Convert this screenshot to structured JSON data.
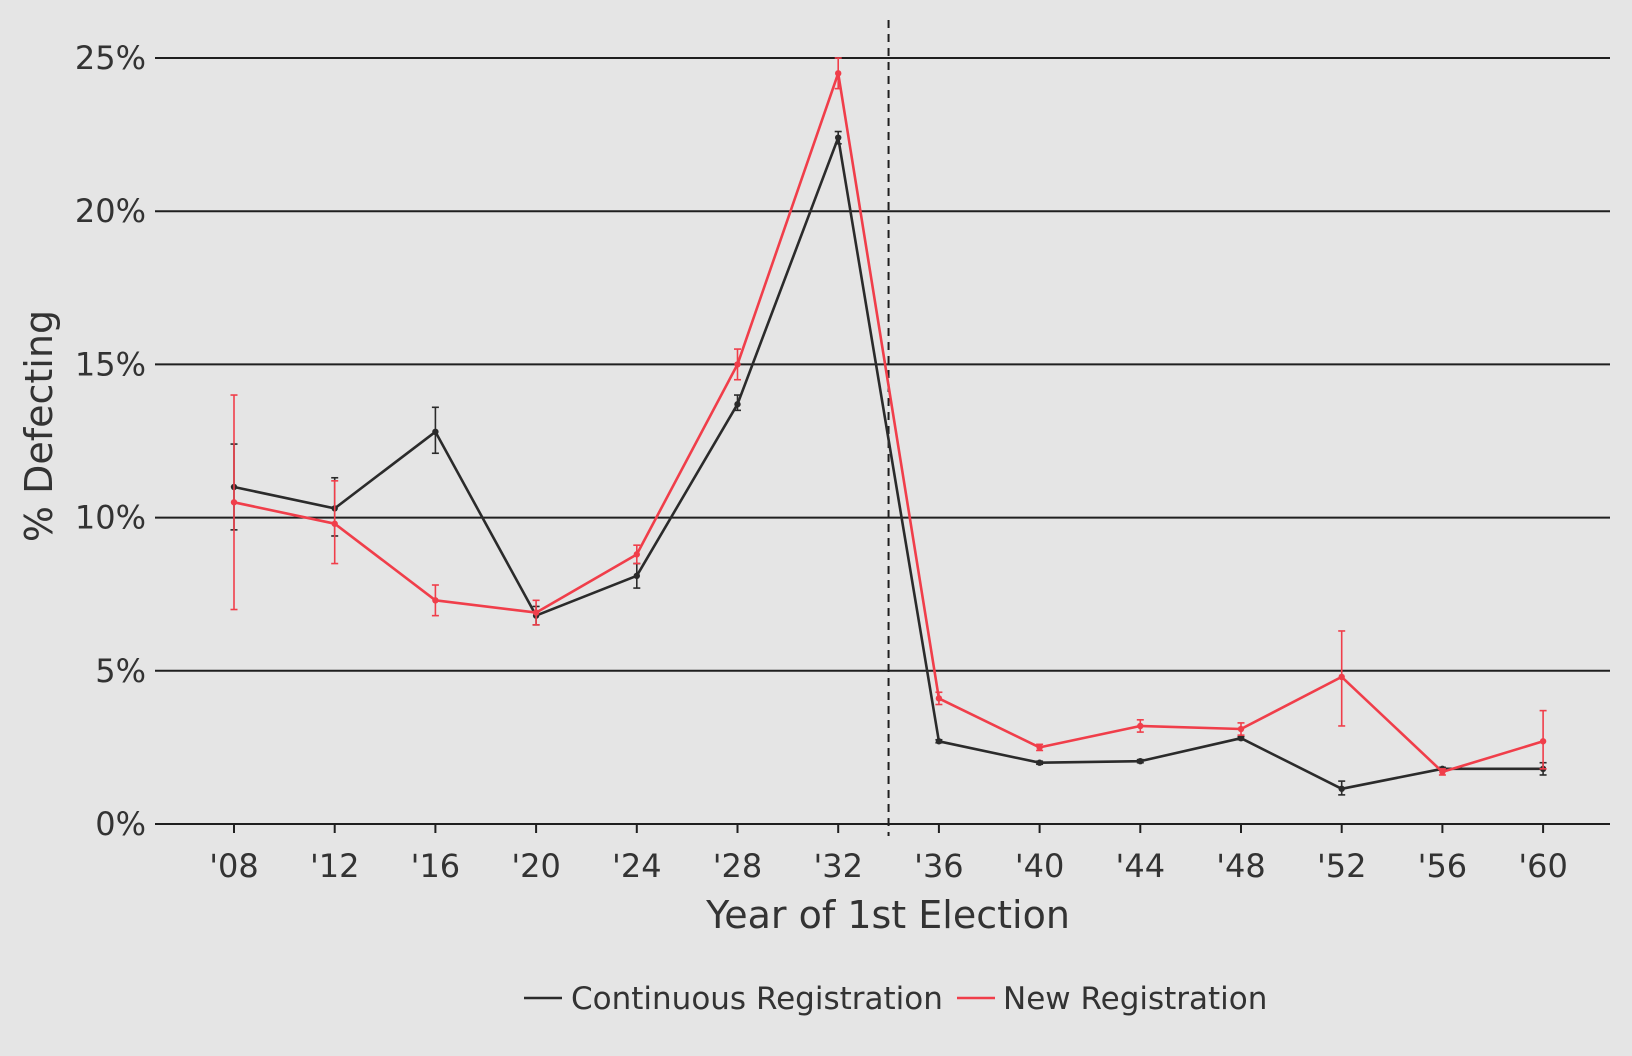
{
  "chart_data": {
    "type": "line",
    "xlabel": "Year of 1st Election",
    "ylabel": "% Defecting",
    "categories": [
      "'08",
      "'12",
      "'16",
      "'20",
      "'24",
      "'28",
      "'32",
      "'36",
      "'40",
      "'44",
      "'48",
      "'52",
      "'56",
      "'60"
    ],
    "y_ticks": [
      {
        "value": 0,
        "label": "0%"
      },
      {
        "value": 5,
        "label": "5%"
      },
      {
        "value": 10,
        "label": "10%"
      },
      {
        "value": 15,
        "label": "15%"
      },
      {
        "value": 20,
        "label": "20%"
      },
      {
        "value": 25,
        "label": "25%"
      }
    ],
    "ylim": [
      0,
      25
    ],
    "grid": "horizontal",
    "reference_line": {
      "type": "vertical-dashed",
      "between": [
        "'32",
        "'36"
      ]
    },
    "legend_position": "bottom",
    "series": [
      {
        "name": "Continuous Registration",
        "color": "#2b2b2b",
        "values": [
          11.0,
          10.3,
          12.8,
          6.8,
          8.1,
          13.7,
          22.4,
          2.7,
          2.0,
          2.05,
          2.8,
          1.15,
          1.8,
          1.8
        ],
        "err_low": [
          9.6,
          9.4,
          12.1,
          6.5,
          7.7,
          13.5,
          22.2,
          2.65,
          1.95,
          2.0,
          2.75,
          0.95,
          1.75,
          1.6
        ],
        "err_high": [
          12.4,
          11.3,
          13.6,
          7.1,
          8.5,
          14.0,
          22.6,
          2.75,
          2.05,
          2.1,
          2.85,
          1.4,
          1.85,
          2.0
        ]
      },
      {
        "name": "New Registration",
        "color": "#f03e4a",
        "values": [
          10.5,
          9.8,
          7.3,
          6.9,
          8.8,
          15.0,
          24.5,
          4.1,
          2.5,
          3.2,
          3.1,
          4.8,
          1.7,
          2.7
        ],
        "err_low": [
          7.0,
          8.5,
          6.8,
          6.5,
          8.5,
          14.5,
          24.0,
          3.9,
          2.4,
          3.0,
          2.9,
          3.2,
          1.6,
          1.8
        ],
        "err_high": [
          14.0,
          11.2,
          7.8,
          7.3,
          9.1,
          15.5,
          25.0,
          4.3,
          2.6,
          3.4,
          3.3,
          6.3,
          1.8,
          3.7
        ]
      }
    ]
  }
}
